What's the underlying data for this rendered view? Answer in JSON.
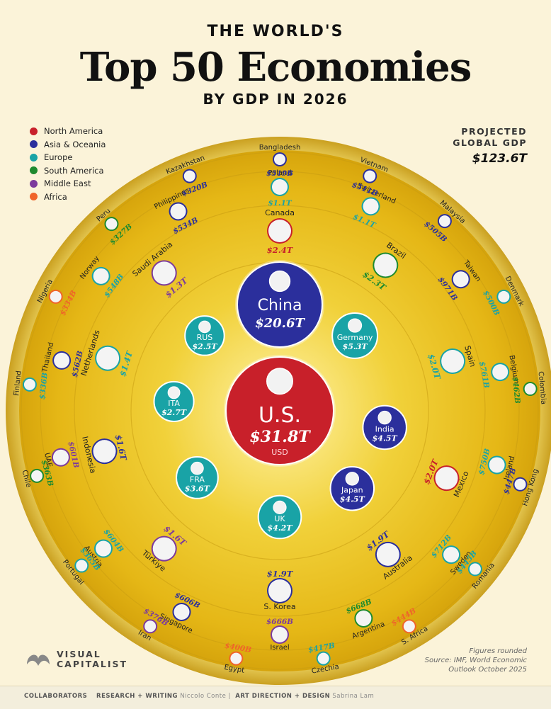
{
  "chart_data": {
    "type": "radial-bubble",
    "title_pre": "THE WORLD'S",
    "title": "Top 50 Economies",
    "subtitle": "BY GDP IN 2026",
    "total_label_1": "PROJECTED",
    "total_label_2": "GLOBAL GDP",
    "total_value": "$123.6T",
    "notes": [
      "Figures rounded",
      "Source: IMF, World Economic",
      "Outlook October 2025"
    ],
    "legend": [
      {
        "region": "north-america",
        "label": "North America",
        "color": "#c8202a"
      },
      {
        "region": "asia-oceania",
        "label": "Asia & Oceania",
        "color": "#2b2f9c"
      },
      {
        "region": "europe",
        "label": "Europe",
        "color": "#19a3a6"
      },
      {
        "region": "south-america",
        "label": "South America",
        "color": "#1e8a2e"
      },
      {
        "region": "middle-east",
        "label": "Middle East",
        "color": "#7c3a9c"
      },
      {
        "region": "africa",
        "label": "Africa",
        "color": "#f0642a"
      }
    ],
    "unit_label": "USD",
    "economies": [
      {
        "name": "U.S.",
        "value": "$31.8T",
        "gdp_t": 31.8,
        "region": "north-america",
        "ring": 0,
        "angle": 0
      },
      {
        "name": "China",
        "value": "$20.6T",
        "gdp_t": 20.6,
        "region": "asia-oceania",
        "ring": 1,
        "angle": 0
      },
      {
        "name": "Germany",
        "value": "$5.3T",
        "gdp_t": 5.3,
        "region": "europe",
        "ring": 1,
        "angle": 45
      },
      {
        "name": "India",
        "value": "$4.5T",
        "gdp_t": 4.5,
        "region": "asia-oceania",
        "ring": 1,
        "angle": 99
      },
      {
        "name": "Japan",
        "value": "$4.5T",
        "gdp_t": 4.5,
        "region": "asia-oceania",
        "ring": 1,
        "angle": 137
      },
      {
        "name": "UK",
        "value": "$4.2T",
        "gdp_t": 4.2,
        "region": "europe",
        "ring": 1,
        "angle": 180
      },
      {
        "name": "FRA",
        "value": "$3.6T",
        "gdp_t": 3.6,
        "region": "europe",
        "ring": 1,
        "angle": 231
      },
      {
        "name": "ITA",
        "value": "$2.7T",
        "gdp_t": 2.7,
        "region": "europe",
        "ring": 1,
        "angle": 275
      },
      {
        "name": "RUS",
        "value": "$2.5T",
        "gdp_t": 2.5,
        "region": "europe",
        "ring": 1,
        "angle": 315
      },
      {
        "name": "Canada",
        "value": "$2.4T",
        "gdp_t": 2.4,
        "region": "north-america",
        "ring": 2,
        "angle": 0
      },
      {
        "name": "Brazil",
        "value": "$2.3T",
        "gdp_t": 2.3,
        "region": "south-america",
        "ring": 2,
        "angle": 36
      },
      {
        "name": "Spain",
        "value": "$2.0T",
        "gdp_t": 2.0,
        "region": "europe",
        "ring": 2,
        "angle": 74
      },
      {
        "name": "Mexico",
        "value": "$2.0T",
        "gdp_t": 2.0,
        "region": "north-america",
        "ring": 2,
        "angle": 112
      },
      {
        "name": "Australia",
        "value": "$1.9T",
        "gdp_t": 1.9,
        "region": "asia-oceania",
        "ring": 2,
        "angle": 143
      },
      {
        "name": "S. Korea",
        "value": "$1.9T",
        "gdp_t": 1.9,
        "region": "asia-oceania",
        "ring": 2,
        "angle": 180
      },
      {
        "name": "Türkiye",
        "value": "$1.6T",
        "gdp_t": 1.6,
        "region": "middle-east",
        "ring": 2,
        "angle": 220
      },
      {
        "name": "Indonesia",
        "value": "$1.6T",
        "gdp_t": 1.6,
        "region": "asia-oceania",
        "ring": 2,
        "angle": 257
      },
      {
        "name": "Netherlands",
        "value": "$1.4T",
        "gdp_t": 1.4,
        "region": "europe",
        "ring": 2,
        "angle": 287
      },
      {
        "name": "Saudi Arabia",
        "value": "$1.3T",
        "gdp_t": 1.3,
        "region": "middle-east",
        "ring": 2,
        "angle": 320
      },
      {
        "name": "Poland",
        "value": "$1.1T",
        "gdp_t": 1.1,
        "region": "europe",
        "ring": 3,
        "angle": 0
      },
      {
        "name": "Switzerland",
        "value": "$1.1T",
        "gdp_t": 1.1,
        "region": "europe",
        "ring": 3,
        "angle": 24
      },
      {
        "name": "Taiwan",
        "value": "$971B",
        "gdp_t": 0.971,
        "region": "asia-oceania",
        "ring": 3,
        "angle": 54
      },
      {
        "name": "Belgium",
        "value": "$761B",
        "gdp_t": 0.761,
        "region": "europe",
        "ring": 3,
        "angle": 80
      },
      {
        "name": "Ireland",
        "value": "$750B",
        "gdp_t": 0.75,
        "region": "europe",
        "ring": 3,
        "angle": 104
      },
      {
        "name": "Sweden",
        "value": "$712B",
        "gdp_t": 0.712,
        "region": "europe",
        "ring": 3,
        "angle": 130
      },
      {
        "name": "Argentina",
        "value": "$668B",
        "gdp_t": 0.668,
        "region": "south-america",
        "ring": 3,
        "angle": 158
      },
      {
        "name": "Israel",
        "value": "$666B",
        "gdp_t": 0.666,
        "region": "middle-east",
        "ring": 3,
        "angle": 180
      },
      {
        "name": "Singapore",
        "value": "$606B",
        "gdp_t": 0.606,
        "region": "asia-oceania",
        "ring": 3,
        "angle": 206
      },
      {
        "name": "Austria",
        "value": "$604B",
        "gdp_t": 0.604,
        "region": "europe",
        "ring": 3,
        "angle": 232
      },
      {
        "name": "UAE",
        "value": "$601B",
        "gdp_t": 0.601,
        "region": "middle-east",
        "ring": 3,
        "angle": 258
      },
      {
        "name": "Thailand",
        "value": "$562B",
        "gdp_t": 0.562,
        "region": "asia-oceania",
        "ring": 3,
        "angle": 283
      },
      {
        "name": "Norway",
        "value": "$548B",
        "gdp_t": 0.548,
        "region": "europe",
        "ring": 3,
        "angle": 307
      },
      {
        "name": "Philippines",
        "value": "$534B",
        "gdp_t": 0.534,
        "region": "asia-oceania",
        "ring": 3,
        "angle": 333
      },
      {
        "name": "Bangladesh",
        "value": "$519B",
        "gdp_t": 0.519,
        "region": "asia-oceania",
        "ring": 4,
        "angle": 0
      },
      {
        "name": "Vietnam",
        "value": "$511B",
        "gdp_t": 0.511,
        "region": "asia-oceania",
        "ring": 4,
        "angle": 21
      },
      {
        "name": "Malaysia",
        "value": "$505B",
        "gdp_t": 0.505,
        "region": "asia-oceania",
        "ring": 4,
        "angle": 41
      },
      {
        "name": "Denmark",
        "value": "$500B",
        "gdp_t": 0.5,
        "region": "europe",
        "ring": 4,
        "angle": 63
      },
      {
        "name": "Colombia",
        "value": "$462B",
        "gdp_t": 0.462,
        "region": "south-america",
        "ring": 4,
        "angle": 85
      },
      {
        "name": "Hong Kong",
        "value": "$447B",
        "gdp_t": 0.447,
        "region": "asia-oceania",
        "ring": 4,
        "angle": 107
      },
      {
        "name": "Romania",
        "value": "$445B",
        "gdp_t": 0.445,
        "region": "europe",
        "ring": 4,
        "angle": 129
      },
      {
        "name": "S. Africa",
        "value": "$444B",
        "gdp_t": 0.444,
        "region": "africa",
        "ring": 4,
        "angle": 149
      },
      {
        "name": "Czechia",
        "value": "$417B",
        "gdp_t": 0.417,
        "region": "europe",
        "ring": 4,
        "angle": 170
      },
      {
        "name": "Egypt",
        "value": "$400B",
        "gdp_t": 0.4,
        "region": "africa",
        "ring": 4,
        "angle": 190
      },
      {
        "name": "Iran",
        "value": "$376B",
        "gdp_t": 0.376,
        "region": "middle-east",
        "ring": 4,
        "angle": 211
      },
      {
        "name": "Portugal",
        "value": "$365B",
        "gdp_t": 0.365,
        "region": "europe",
        "ring": 4,
        "angle": 232
      },
      {
        "name": "Chile",
        "value": "$363B",
        "gdp_t": 0.363,
        "region": "south-america",
        "ring": 4,
        "angle": 255
      },
      {
        "name": "Finland",
        "value": "$336B",
        "gdp_t": 0.336,
        "region": "europe",
        "ring": 4,
        "angle": 276
      },
      {
        "name": "Nigeria",
        "value": "$334B",
        "gdp_t": 0.334,
        "region": "africa",
        "ring": 4,
        "angle": 297
      },
      {
        "name": "Peru",
        "value": "$327B",
        "gdp_t": 0.327,
        "region": "south-america",
        "ring": 4,
        "angle": 318
      },
      {
        "name": "Kazakhstan",
        "value": "$320B",
        "gdp_t": 0.32,
        "region": "asia-oceania",
        "ring": 4,
        "angle": 339
      }
    ]
  },
  "brand": {
    "line1": "VISUAL",
    "line2": "CAPITALIST"
  },
  "credits": {
    "heading": "COLLABORATORS",
    "research_role": "RESEARCH + WRITING",
    "research_name": "Niccolo Conte",
    "design_role": "ART DIRECTION + DESIGN",
    "design_name": "Sabrina Lam"
  }
}
